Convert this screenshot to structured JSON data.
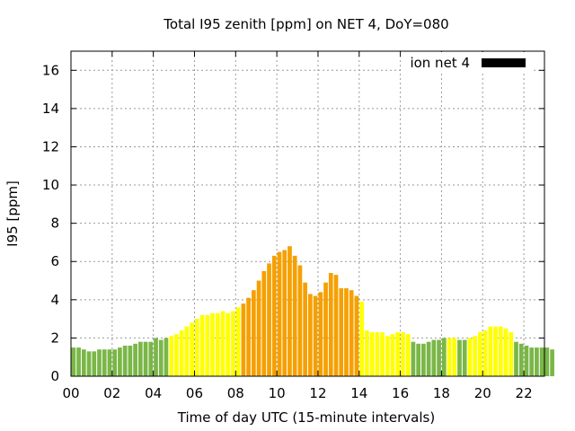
{
  "chart_data": {
    "type": "bar",
    "title": "Total I95 zenith [ppm] on NET 4, DoY=080",
    "xlabel": "Time of day UTC (15-minute intervals)",
    "ylabel": "I95 [ppm]",
    "xlim": [
      0,
      23
    ],
    "ylim": [
      0,
      17
    ],
    "bar_interval_hours": 0.25,
    "x_ticks": [
      "00",
      "02",
      "04",
      "06",
      "08",
      "10",
      "12",
      "14",
      "16",
      "18",
      "20",
      "22"
    ],
    "x_tick_values": [
      0,
      2,
      4,
      6,
      8,
      10,
      12,
      14,
      16,
      18,
      20,
      22
    ],
    "y_ticks": [
      "0",
      "2",
      "4",
      "6",
      "8",
      "10",
      "12",
      "14",
      "16"
    ],
    "y_tick_values": [
      0,
      2,
      4,
      6,
      8,
      10,
      12,
      14,
      16
    ],
    "grid": true,
    "legend": {
      "label": "ion net 4",
      "position": "top-right",
      "color": "#000000"
    },
    "colors": {
      "green": "#7ab648",
      "yellow": "#ffff00",
      "orange": "#f5a000"
    },
    "series": [
      {
        "values": [
          1.5,
          1.5,
          1.4,
          1.3,
          1.3,
          1.4,
          1.4,
          1.4,
          1.4,
          1.5,
          1.6,
          1.6,
          1.7,
          1.8,
          1.8,
          1.8,
          2.0,
          1.9,
          2.0,
          2.1,
          2.2,
          2.4,
          2.6,
          2.8,
          3.0,
          3.2,
          3.2,
          3.3,
          3.3,
          3.4,
          3.3,
          3.4,
          3.6,
          3.8,
          4.1,
          4.5,
          5.0,
          5.5,
          5.9,
          6.3,
          6.5,
          6.6,
          6.8,
          6.3,
          5.8,
          4.9,
          4.3,
          4.2,
          4.4,
          4.9,
          5.4,
          5.3,
          4.6,
          4.6,
          4.5,
          4.2,
          3.9,
          2.4,
          2.3,
          2.3,
          2.3,
          2.1,
          2.2,
          2.3,
          2.3,
          2.2,
          1.8,
          1.7,
          1.7,
          1.8,
          1.9,
          1.9,
          2.0,
          2.0,
          2.0,
          1.9,
          1.9,
          2.0,
          2.1,
          2.3,
          2.4,
          2.6,
          2.6,
          2.6,
          2.5,
          2.3,
          1.8,
          1.7,
          1.6,
          1.5,
          1.5,
          1.5,
          1.5,
          1.4
        ],
        "colors": [
          "green",
          "green",
          "green",
          "green",
          "green",
          "green",
          "green",
          "green",
          "green",
          "green",
          "green",
          "green",
          "green",
          "green",
          "green",
          "green",
          "green",
          "green",
          "green",
          "yellow",
          "yellow",
          "yellow",
          "yellow",
          "yellow",
          "yellow",
          "yellow",
          "yellow",
          "yellow",
          "yellow",
          "yellow",
          "yellow",
          "yellow",
          "yellow",
          "orange",
          "orange",
          "orange",
          "orange",
          "orange",
          "orange",
          "orange",
          "orange",
          "orange",
          "orange",
          "orange",
          "orange",
          "orange",
          "orange",
          "orange",
          "orange",
          "orange",
          "orange",
          "orange",
          "orange",
          "orange",
          "orange",
          "orange",
          "yellow",
          "yellow",
          "yellow",
          "yellow",
          "yellow",
          "yellow",
          "yellow",
          "yellow",
          "yellow",
          "yellow",
          "green",
          "green",
          "green",
          "green",
          "green",
          "green",
          "green",
          "yellow",
          "yellow",
          "green",
          "green",
          "yellow",
          "yellow",
          "yellow",
          "yellow",
          "yellow",
          "yellow",
          "yellow",
          "yellow",
          "yellow",
          "green",
          "green",
          "green",
          "green",
          "green",
          "green",
          "green",
          "green"
        ]
      }
    ]
  }
}
